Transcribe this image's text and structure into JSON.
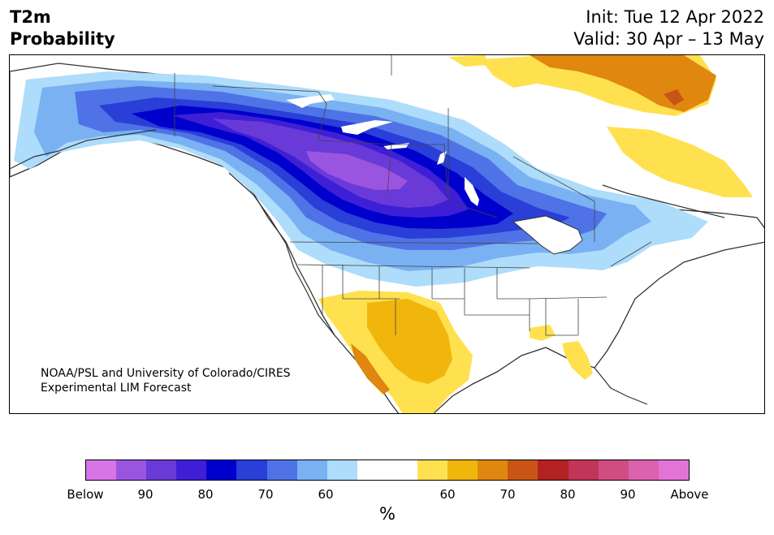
{
  "header": {
    "title_line1": "T2m",
    "title_line2": "Probability",
    "init": "Init: Tue 12 Apr 2022",
    "valid": "Valid: 30 Apr – 13 May"
  },
  "map": {
    "region": "North America",
    "credit_line1": "NOAA/PSL and University of Colorado/CIRES",
    "credit_line2": "Experimental LIM Forecast"
  },
  "colorbar": {
    "colors": [
      "#d674e8",
      "#9a55e0",
      "#6a3ad8",
      "#3f1fd6",
      "#0000cc",
      "#2a3ed8",
      "#4f73e6",
      "#79b1f2",
      "#aedcfb",
      "#ffffff",
      "#ffffff",
      "#ffe14f",
      "#f1b60b",
      "#df870f",
      "#c85516",
      "#b42121",
      "#c03558",
      "#d04d82",
      "#dc62ad",
      "#e473d6"
    ],
    "tick_labels": [
      "Below",
      "90",
      "80",
      "70",
      "60",
      "60",
      "70",
      "80",
      "90",
      "Above"
    ],
    "unit_label": "%"
  }
}
